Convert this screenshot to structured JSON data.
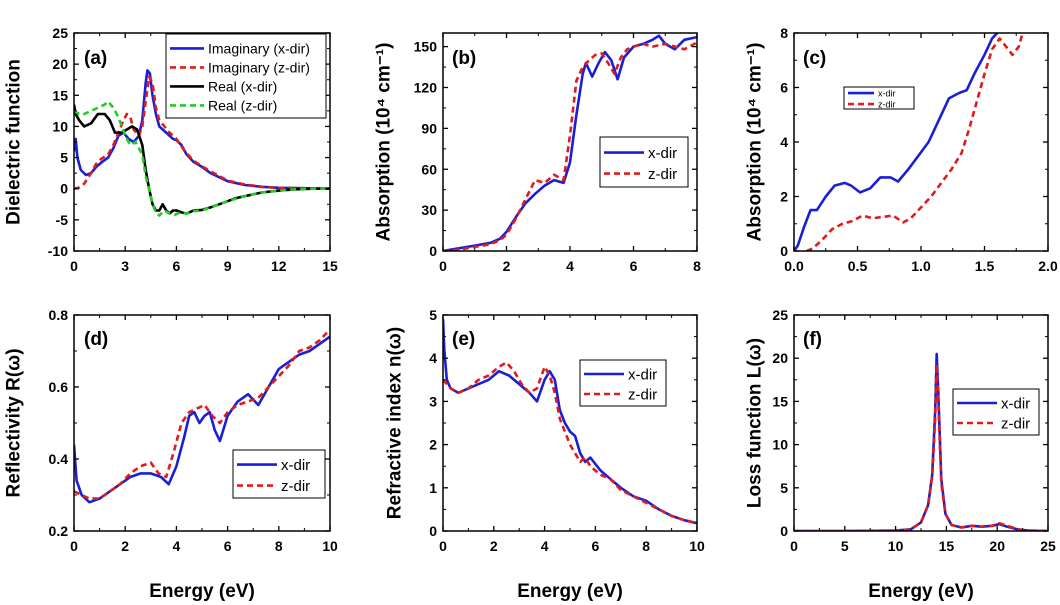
{
  "chart_data": [
    {
      "id": "a",
      "type": "line",
      "panel_label": "(a)",
      "xlabel": "",
      "ylabel": "Dielectric function",
      "xlim": [
        0,
        15
      ],
      "ylim": [
        -10,
        25
      ],
      "xticks": [
        0,
        3,
        6,
        9,
        12,
        15
      ],
      "yticks": [
        -10,
        -5,
        0,
        5,
        10,
        15,
        20,
        25
      ],
      "legend": "top-right",
      "series": [
        {
          "name": "Imaginary (x-dir)",
          "color": "#1a1fd6",
          "style": "solid",
          "x": [
            0,
            0.1,
            0.2,
            0.4,
            0.7,
            1.0,
            1.3,
            1.6,
            2.0,
            2.3,
            2.6,
            2.9,
            3.2,
            3.5,
            3.8,
            4.0,
            4.2,
            4.3,
            4.45,
            4.6,
            4.8,
            5.0,
            5.2,
            5.4,
            5.6,
            5.8,
            6.0,
            6.3,
            6.6,
            7.0,
            7.5,
            8.0,
            9.0,
            10,
            11,
            12,
            13,
            14,
            15
          ],
          "y": [
            6,
            8,
            5,
            3,
            2.2,
            2.5,
            3.5,
            4.2,
            5,
            6.5,
            8.5,
            9,
            8,
            7.5,
            8.5,
            11,
            17,
            19,
            18.5,
            15,
            12,
            10,
            9.5,
            9,
            8.5,
            8,
            7.8,
            7,
            5.5,
            4.3,
            3.5,
            2.5,
            1.2,
            0.6,
            0.3,
            0.15,
            0.1,
            0.05,
            0
          ]
        },
        {
          "name": "Imaginary (z-dir)",
          "color": "#e01b1b",
          "style": "dashed",
          "x": [
            0,
            0.3,
            0.6,
            1.0,
            1.3,
            1.6,
            2.0,
            2.3,
            2.6,
            2.9,
            3.1,
            3.3,
            3.5,
            3.8,
            4.0,
            4.2,
            4.4,
            4.6,
            4.8,
            5.0,
            5.3,
            5.6,
            6.0,
            6.5,
            7.0,
            7.5,
            8.0,
            9.0,
            10,
            11,
            12,
            13,
            14,
            15
          ],
          "y": [
            0,
            0.2,
            0.8,
            2.5,
            4,
            4.8,
            5.5,
            7,
            9,
            11,
            12,
            11.5,
            9.5,
            8.5,
            10,
            14,
            18,
            17,
            13,
            11,
            10,
            9,
            8,
            6,
            4.5,
            3.6,
            2.8,
            1.3,
            0.7,
            0.3,
            0.15,
            0.1,
            0.05,
            0
          ]
        },
        {
          "name": "Real (x-dir)",
          "color": "#000000",
          "style": "solid",
          "x": [
            0,
            0.1,
            0.3,
            0.6,
            1.0,
            1.4,
            1.8,
            2.1,
            2.4,
            2.8,
            3.1,
            3.4,
            3.7,
            4.0,
            4.2,
            4.4,
            4.6,
            4.8,
            5.0,
            5.2,
            5.4,
            5.6,
            5.8,
            6.0,
            6.3,
            6.6,
            7.0,
            7.5,
            8.0,
            8.5,
            9.0,
            9.5,
            10,
            11,
            12,
            13,
            14,
            15
          ],
          "y": [
            13.5,
            12,
            11,
            10,
            10.5,
            12,
            12,
            11,
            9,
            9,
            9.5,
            10,
            9.5,
            7,
            3,
            0,
            -2.5,
            -3.5,
            -3.5,
            -2.5,
            -3.5,
            -4,
            -3.5,
            -3.5,
            -3.8,
            -4,
            -3.5,
            -3.4,
            -3,
            -2.5,
            -2,
            -1.5,
            -1.2,
            -0.6,
            -0.3,
            -0.1,
            0,
            0
          ]
        },
        {
          "name": "Real (z-dir)",
          "color": "#22cc22",
          "style": "dashed",
          "x": [
            0,
            0.3,
            0.6,
            1.0,
            1.4,
            1.8,
            2.0,
            2.3,
            2.6,
            3.0,
            3.3,
            3.6,
            4.0,
            4.2,
            4.4,
            4.6,
            4.8,
            5.0,
            5.3,
            5.6,
            5.9,
            6.2,
            6.6,
            7.0,
            7.5,
            8.0,
            8.5,
            9.0,
            10,
            11,
            12,
            13,
            14,
            15
          ],
          "y": [
            12.5,
            12,
            12,
            12.5,
            13,
            13.5,
            14,
            13,
            11.5,
            8.5,
            7,
            7.5,
            5.5,
            2,
            0,
            -2.5,
            -3.8,
            -4.3,
            -3.5,
            -4,
            -4.2,
            -3.8,
            -4,
            -3.6,
            -3.5,
            -3,
            -2.5,
            -2,
            -1.2,
            -0.6,
            -0.3,
            -0.1,
            0,
            0
          ]
        }
      ]
    },
    {
      "id": "b",
      "type": "line",
      "panel_label": "(b)",
      "xlabel": "",
      "ylabel": "Absorption (10⁴ cm⁻¹)",
      "xlim": [
        0,
        8
      ],
      "ylim": [
        0,
        160
      ],
      "xticks": [
        0,
        2,
        4,
        6,
        8
      ],
      "yticks": [
        0,
        30,
        60,
        90,
        120,
        150
      ],
      "legend": "middle-right",
      "series": [
        {
          "name": "x-dir",
          "color": "#1a1fd6",
          "style": "solid",
          "x": [
            0,
            0.5,
            1.0,
            1.5,
            1.8,
            2.0,
            2.3,
            2.6,
            2.9,
            3.2,
            3.5,
            3.8,
            4.0,
            4.2,
            4.4,
            4.5,
            4.7,
            4.9,
            5.1,
            5.3,
            5.5,
            5.7,
            6.0,
            6.3,
            6.6,
            6.8,
            7.0,
            7.3,
            7.6,
            8.0
          ],
          "y": [
            0,
            2,
            4,
            6,
            9,
            14,
            25,
            35,
            42,
            48,
            52,
            50,
            65,
            100,
            130,
            138,
            128,
            138,
            146,
            140,
            126,
            142,
            150,
            152,
            155,
            158,
            152,
            148,
            155,
            157
          ]
        },
        {
          "name": "z-dir",
          "color": "#e01b1b",
          "style": "dashed",
          "x": [
            0,
            0.5,
            1.0,
            1.5,
            1.8,
            2.0,
            2.3,
            2.6,
            2.9,
            3.2,
            3.5,
            3.8,
            4.0,
            4.2,
            4.4,
            4.6,
            4.8,
            5.0,
            5.2,
            5.4,
            5.6,
            5.8,
            6.0,
            6.3,
            6.6,
            7.0,
            7.3,
            7.6,
            8.0
          ],
          "y": [
            0,
            1,
            3,
            5,
            8,
            12,
            24,
            38,
            52,
            50,
            56,
            52,
            85,
            125,
            135,
            140,
            144,
            145,
            138,
            130,
            142,
            148,
            150,
            152,
            150,
            152,
            150,
            148,
            153
          ]
        }
      ]
    },
    {
      "id": "c",
      "type": "line",
      "panel_label": "(c)",
      "xlabel": "",
      "ylabel": "Absorption (10⁴ cm⁻¹)",
      "xlim": [
        0,
        2.0
      ],
      "ylim": [
        0,
        8
      ],
      "xticks": [
        0.0,
        0.5,
        1.0,
        1.5,
        2.0
      ],
      "yticks": [
        0,
        2,
        4,
        6,
        8
      ],
      "legend": "top-left",
      "series": [
        {
          "name": "x-dir",
          "color": "#1a1fd6",
          "style": "solid",
          "x": [
            0.0,
            0.03,
            0.08,
            0.13,
            0.18,
            0.25,
            0.32,
            0.4,
            0.45,
            0.52,
            0.6,
            0.68,
            0.76,
            0.82,
            0.9,
            0.98,
            1.06,
            1.14,
            1.22,
            1.3,
            1.36,
            1.42,
            1.5,
            1.56,
            1.6
          ],
          "y": [
            0,
            0.2,
            0.9,
            1.5,
            1.5,
            2.0,
            2.4,
            2.5,
            2.4,
            2.15,
            2.3,
            2.7,
            2.7,
            2.55,
            3.0,
            3.5,
            4.0,
            4.8,
            5.6,
            5.8,
            5.9,
            6.5,
            7.2,
            7.8,
            8.0
          ]
        },
        {
          "name": "z-dir",
          "color": "#e01b1b",
          "style": "dashed",
          "x": [
            0.1,
            0.15,
            0.22,
            0.3,
            0.38,
            0.46,
            0.54,
            0.62,
            0.7,
            0.78,
            0.86,
            0.92,
            1.0,
            1.08,
            1.16,
            1.24,
            1.32,
            1.38,
            1.44,
            1.5,
            1.56,
            1.62,
            1.67,
            1.72,
            1.77,
            1.8
          ],
          "y": [
            0,
            0.1,
            0.4,
            0.8,
            1.0,
            1.1,
            1.3,
            1.2,
            1.25,
            1.3,
            1.05,
            1.2,
            1.6,
            2.0,
            2.5,
            3.0,
            3.6,
            4.5,
            5.5,
            6.5,
            7.4,
            7.8,
            7.5,
            7.2,
            7.5,
            8.0
          ]
        }
      ]
    },
    {
      "id": "d",
      "type": "line",
      "panel_label": "(d)",
      "xlabel": "Energy (eV)",
      "ylabel": "Reflectivity R(ω)",
      "xlim": [
        0,
        10
      ],
      "ylim": [
        0.2,
        0.8
      ],
      "xticks": [
        0,
        2,
        4,
        6,
        8,
        10
      ],
      "yticks": [
        0.2,
        0.4,
        0.6,
        0.8
      ],
      "legend": "bottom-center",
      "series": [
        {
          "name": "x-dir",
          "color": "#1a1fd6",
          "style": "solid",
          "x": [
            0,
            0.1,
            0.3,
            0.6,
            1.0,
            1.4,
            1.8,
            2.2,
            2.6,
            3.0,
            3.4,
            3.7,
            4.0,
            4.3,
            4.5,
            4.7,
            4.9,
            5.1,
            5.3,
            5.5,
            5.7,
            6.0,
            6.4,
            6.8,
            7.2,
            7.6,
            8.0,
            8.4,
            8.8,
            9.2,
            9.6,
            10
          ],
          "y": [
            0.44,
            0.34,
            0.3,
            0.28,
            0.29,
            0.31,
            0.33,
            0.35,
            0.36,
            0.36,
            0.35,
            0.33,
            0.38,
            0.46,
            0.52,
            0.53,
            0.5,
            0.52,
            0.53,
            0.48,
            0.45,
            0.52,
            0.56,
            0.58,
            0.55,
            0.6,
            0.65,
            0.67,
            0.69,
            0.7,
            0.72,
            0.74
          ]
        },
        {
          "name": "z-dir",
          "color": "#e01b1b",
          "style": "dashed",
          "x": [
            0,
            0.3,
            0.6,
            1.0,
            1.4,
            1.8,
            2.2,
            2.6,
            3.0,
            3.3,
            3.6,
            3.9,
            4.2,
            4.5,
            4.8,
            5.1,
            5.4,
            5.7,
            6.0,
            6.4,
            6.8,
            7.2,
            7.6,
            8.0,
            8.4,
            8.8,
            9.2,
            9.6,
            10
          ],
          "y": [
            0.31,
            0.3,
            0.29,
            0.29,
            0.31,
            0.33,
            0.36,
            0.38,
            0.39,
            0.36,
            0.35,
            0.42,
            0.5,
            0.53,
            0.54,
            0.55,
            0.52,
            0.5,
            0.53,
            0.55,
            0.56,
            0.57,
            0.6,
            0.63,
            0.66,
            0.7,
            0.71,
            0.73,
            0.76
          ]
        }
      ]
    },
    {
      "id": "e",
      "type": "line",
      "panel_label": "(e)",
      "xlabel": "Energy (eV)",
      "ylabel": "Refractive index n(ω)",
      "xlim": [
        0,
        10
      ],
      "ylim": [
        0,
        5
      ],
      "xticks": [
        0,
        2,
        4,
        6,
        8,
        10
      ],
      "yticks": [
        0,
        1,
        2,
        3,
        4,
        5
      ],
      "legend": "top-right",
      "series": [
        {
          "name": "x-dir",
          "color": "#1a1fd6",
          "style": "solid",
          "x": [
            0,
            0.05,
            0.15,
            0.3,
            0.6,
            1.0,
            1.4,
            1.8,
            2.2,
            2.6,
            3.0,
            3.4,
            3.7,
            4.0,
            4.2,
            4.4,
            4.6,
            4.8,
            5.0,
            5.2,
            5.4,
            5.6,
            5.8,
            6.2,
            6.6,
            7.0,
            7.5,
            8.0,
            8.5,
            9.0,
            9.5,
            10
          ],
          "y": [
            4.9,
            4.2,
            3.5,
            3.3,
            3.2,
            3.3,
            3.4,
            3.5,
            3.7,
            3.6,
            3.4,
            3.2,
            3.0,
            3.5,
            3.7,
            3.5,
            2.8,
            2.5,
            2.3,
            2.2,
            1.8,
            1.6,
            1.7,
            1.4,
            1.2,
            1.0,
            0.8,
            0.7,
            0.5,
            0.35,
            0.25,
            0.18
          ]
        },
        {
          "name": "z-dir",
          "color": "#e01b1b",
          "style": "dashed",
          "x": [
            0,
            0.3,
            0.6,
            1.0,
            1.4,
            1.8,
            2.2,
            2.5,
            2.8,
            3.1,
            3.4,
            3.7,
            4.0,
            4.2,
            4.4,
            4.6,
            4.8,
            5.0,
            5.2,
            5.4,
            5.6,
            5.8,
            6.2,
            6.6,
            7.0,
            7.5,
            8.0,
            8.5,
            9.0,
            9.5,
            10
          ],
          "y": [
            3.5,
            3.3,
            3.2,
            3.3,
            3.5,
            3.6,
            3.8,
            3.9,
            3.7,
            3.4,
            3.2,
            3.3,
            3.8,
            3.6,
            3.2,
            2.6,
            2.3,
            2.0,
            1.8,
            1.6,
            1.7,
            1.5,
            1.3,
            1.2,
            0.95,
            0.8,
            0.65,
            0.5,
            0.35,
            0.25,
            0.18
          ]
        }
      ]
    },
    {
      "id": "f",
      "type": "line",
      "panel_label": "(f)",
      "xlabel": "Energy (eV)",
      "ylabel": "Loss function L(ω)",
      "xlim": [
        0,
        25
      ],
      "ylim": [
        0,
        25
      ],
      "xticks": [
        0,
        5,
        10,
        15,
        20,
        25
      ],
      "yticks": [
        0,
        5,
        10,
        15,
        20,
        25
      ],
      "legend": "middle-right",
      "series": [
        {
          "name": "x-dir",
          "color": "#1a1fd6",
          "style": "solid",
          "x": [
            0,
            5,
            10,
            11.5,
            12.5,
            13.2,
            13.6,
            13.9,
            14.05,
            14.2,
            14.5,
            14.9,
            15.5,
            16.5,
            17.5,
            18.5,
            19.5,
            20.2,
            21,
            22,
            23,
            25
          ],
          "y": [
            0,
            0,
            0.05,
            0.2,
            1.0,
            3.0,
            6.5,
            14,
            20.5,
            16,
            6,
            2,
            0.7,
            0.4,
            0.6,
            0.5,
            0.6,
            0.8,
            0.5,
            0.2,
            0.05,
            0
          ]
        },
        {
          "name": "z-dir",
          "color": "#e01b1b",
          "style": "dashed",
          "x": [
            0,
            5,
            10,
            11.5,
            12.5,
            13.2,
            13.6,
            13.9,
            14.05,
            14.2,
            14.5,
            14.9,
            15.5,
            16.5,
            17.5,
            18.5,
            19.5,
            20.2,
            21,
            22,
            23,
            25
          ],
          "y": [
            0,
            0,
            0.05,
            0.2,
            1.0,
            3.0,
            6.3,
            13,
            19.3,
            15,
            5.5,
            2,
            0.7,
            0.4,
            0.6,
            0.5,
            0.6,
            0.9,
            0.6,
            0.2,
            0.05,
            0
          ]
        }
      ]
    }
  ]
}
